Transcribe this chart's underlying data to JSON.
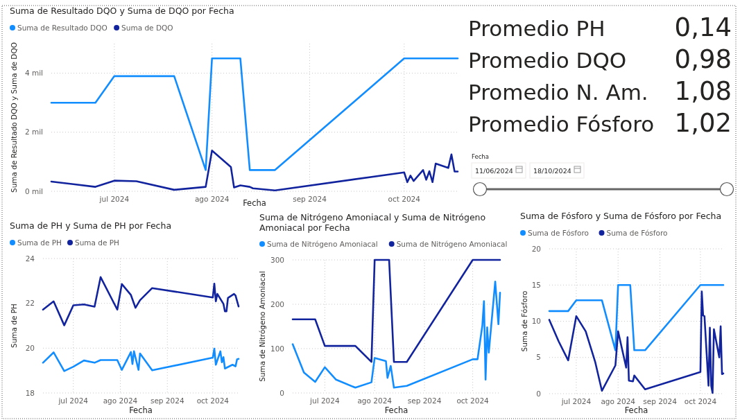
{
  "chart_data": [
    {
      "type": "line",
      "title": "Suma de Resultado DQO y Suma de DQO por Fecha",
      "xlabel": "Fecha",
      "ylabel": "Suma de Resultado DQO y Suma de DQO",
      "legend": "top left",
      "grid": true,
      "xlim": [
        "2024-06-11",
        "2024-10-18"
      ],
      "xticks": [
        {
          "value": "2024-07-01",
          "label": "jul 2024"
        },
        {
          "value": "2024-08-01",
          "label": "ago 2024"
        },
        {
          "value": "2024-09-01",
          "label": "sep 2024"
        },
        {
          "value": "2024-10-01",
          "label": "oct 2024"
        }
      ],
      "ylim": [
        0,
        5
      ],
      "yticks": [
        {
          "value": 0,
          "label": "0 mil"
        },
        {
          "value": 2,
          "label": "2 mil"
        },
        {
          "value": 4,
          "label": "4 mil"
        }
      ],
      "series": [
        {
          "name": "Suma de Resultado DQO",
          "color": "#118dff",
          "x": [
            "2024-06-11",
            "2024-06-25",
            "2024-07-01",
            "2024-07-20",
            "2024-07-30",
            "2024-08-01",
            "2024-08-10",
            "2024-08-13",
            "2024-08-21",
            "2024-10-01",
            "2024-10-18"
          ],
          "values": [
            3,
            3,
            3.9,
            3.9,
            0.72,
            4.5,
            4.5,
            0.72,
            0.72,
            4.5,
            4.5
          ]
        },
        {
          "name": "Suma de DQO",
          "color": "#12239e",
          "x": [
            "2024-06-11",
            "2024-06-18",
            "2024-06-25",
            "2024-07-01",
            "2024-07-08",
            "2024-07-20",
            "2024-07-30",
            "2024-08-01",
            "2024-08-07",
            "2024-08-08",
            "2024-08-10",
            "2024-08-13",
            "2024-08-14",
            "2024-08-21",
            "2024-10-01",
            "2024-10-02",
            "2024-10-03",
            "2024-10-04",
            "2024-10-07",
            "2024-10-08",
            "2024-10-09",
            "2024-10-10",
            "2024-10-11",
            "2024-10-15",
            "2024-10-16",
            "2024-10-17",
            "2024-10-18"
          ],
          "values": [
            0.33,
            0.24,
            0.15,
            0.36,
            0.34,
            0.05,
            0.15,
            1.38,
            0.82,
            0.13,
            0.2,
            0.15,
            0.1,
            0.03,
            0.64,
            0.31,
            0.53,
            0.35,
            0.72,
            0.39,
            0.68,
            0.31,
            0.94,
            0.79,
            1.25,
            0.67,
            0.67
          ]
        }
      ]
    },
    {
      "type": "line",
      "title": "Suma de PH y Suma de PH por Fecha",
      "xlabel": "Fecha",
      "ylabel": "Suma de PH",
      "legend": "top left",
      "grid": true,
      "xlim": [
        "2024-06-11",
        "2024-10-18"
      ],
      "xticks": [
        {
          "value": "2024-07-01",
          "label": "jul 2024"
        },
        {
          "value": "2024-08-01",
          "label": "ago 2024"
        },
        {
          "value": "2024-09-01",
          "label": "sep 2024"
        },
        {
          "value": "2024-10-01",
          "label": "oct 2024"
        }
      ],
      "ylim": [
        18,
        24
      ],
      "yticks": [
        18,
        20,
        22,
        24
      ],
      "series": [
        {
          "name": "Suma de PH",
          "color": "#118dff",
          "x": [
            "2024-06-11",
            "2024-06-18",
            "2024-06-25",
            "2024-07-01",
            "2024-07-08",
            "2024-07-15",
            "2024-07-19",
            "2024-07-30",
            "2024-08-02",
            "2024-08-08",
            "2024-08-09",
            "2024-08-10",
            "2024-08-13",
            "2024-08-14",
            "2024-08-22",
            "2024-10-01",
            "2024-10-02",
            "2024-10-03",
            "2024-10-06",
            "2024-10-07",
            "2024-10-08",
            "2024-10-09",
            "2024-10-14",
            "2024-10-16",
            "2024-10-17",
            "2024-10-18"
          ],
          "values": [
            19.35,
            19.81,
            18.98,
            19.17,
            19.45,
            19.35,
            19.47,
            19.47,
            19.03,
            19.83,
            19.29,
            19.86,
            19.03,
            19.76,
            19.01,
            19.58,
            19.98,
            19.26,
            19.86,
            19.37,
            19.6,
            19.09,
            19.26,
            19.19,
            19.5,
            19.52
          ]
        },
        {
          "name": "Suma de PH",
          "color": "#12239e",
          "x": [
            "2024-06-11",
            "2024-06-18",
            "2024-06-25",
            "2024-07-01",
            "2024-07-08",
            "2024-07-15",
            "2024-07-19",
            "2024-07-30",
            "2024-08-02",
            "2024-08-08",
            "2024-08-11",
            "2024-08-14",
            "2024-08-22",
            "2024-10-01",
            "2024-10-02",
            "2024-10-03",
            "2024-10-04",
            "2024-10-08",
            "2024-10-09",
            "2024-10-10",
            "2024-10-11",
            "2024-10-15",
            "2024-10-16",
            "2024-10-18"
          ],
          "values": [
            21.72,
            22.09,
            21.02,
            21.91,
            21.95,
            21.85,
            23.17,
            21.72,
            22.86,
            22.37,
            21.8,
            22.14,
            22.68,
            22.26,
            22.88,
            22.09,
            22.42,
            21.98,
            21.64,
            21.64,
            22.24,
            22.42,
            22.35,
            21.86
          ]
        }
      ]
    },
    {
      "type": "line",
      "title": "Suma de Nitrógeno Amoniacal y Suma de Nitrógeno Amoniacal por Fecha",
      "xlabel": "Fecha",
      "ylabel": "Suma de Nitrógeno Amoniacal",
      "legend": "top left",
      "grid": true,
      "xlim": [
        "2024-06-11",
        "2024-10-18"
      ],
      "xticks": [
        {
          "value": "2024-07-01",
          "label": "jul 2024"
        },
        {
          "value": "2024-08-01",
          "label": "ago 2024"
        },
        {
          "value": "2024-09-01",
          "label": "sep 2024"
        },
        {
          "value": "2024-10-01",
          "label": "oct 2024"
        }
      ],
      "ylim": [
        0,
        300
      ],
      "yticks": [
        0,
        100,
        200,
        300
      ],
      "series": [
        {
          "name": "Suma de Nitrógeno Amoniacal",
          "color": "#118dff",
          "x": [
            "2024-06-11",
            "2024-06-18",
            "2024-06-25",
            "2024-07-01",
            "2024-07-08",
            "2024-07-20",
            "2024-07-30",
            "2024-08-01",
            "2024-08-08",
            "2024-08-09",
            "2024-08-11",
            "2024-08-13",
            "2024-08-21",
            "2024-10-01",
            "2024-10-04",
            "2024-10-07",
            "2024-10-08",
            "2024-10-09",
            "2024-10-10",
            "2024-10-11",
            "2024-10-15",
            "2024-10-17",
            "2024-10-18"
          ],
          "values": [
            110,
            46,
            25,
            58,
            30,
            12,
            24,
            79,
            72,
            34,
            61,
            12,
            16,
            76,
            76,
            152,
            207,
            30,
            148,
            91,
            251,
            155,
            226
          ]
        },
        {
          "name": "Suma de Nitrógeno Amoniacal",
          "color": "#12239e",
          "x": [
            "2024-06-11",
            "2024-06-25",
            "2024-07-01",
            "2024-07-20",
            "2024-07-30",
            "2024-08-01",
            "2024-08-10",
            "2024-08-13",
            "2024-08-21",
            "2024-10-01",
            "2024-10-18"
          ],
          "values": [
            166,
            166,
            106,
            106,
            70,
            300,
            300,
            70,
            70,
            300,
            300
          ]
        }
      ]
    },
    {
      "type": "line",
      "title": "Suma de Fósforo y Suma de Fósforo por Fecha",
      "xlabel": "Fecha",
      "ylabel": "Suma de Fósforo",
      "legend": "top left",
      "grid": true,
      "xlim": [
        "2024-06-11",
        "2024-10-18"
      ],
      "xticks": [
        {
          "value": "2024-07-01",
          "label": "jul 2024"
        },
        {
          "value": "2024-08-01",
          "label": "ago 2024"
        },
        {
          "value": "2024-09-01",
          "label": "sep 2024"
        },
        {
          "value": "2024-10-01",
          "label": "oct 2024"
        }
      ],
      "ylim": [
        0,
        20
      ],
      "yticks": [
        0,
        5,
        10,
        15,
        20
      ],
      "series": [
        {
          "name": "Suma de Fósforo",
          "color": "#118dff",
          "x": [
            "2024-06-11",
            "2024-06-25",
            "2024-07-01",
            "2024-07-20",
            "2024-07-30",
            "2024-08-01",
            "2024-08-10",
            "2024-08-13",
            "2024-08-21",
            "2024-10-01",
            "2024-10-18"
          ],
          "values": [
            11.4,
            11.4,
            12.9,
            12.9,
            6,
            15,
            15,
            6,
            6,
            15,
            15
          ]
        },
        {
          "name": "Suma de Fósforo",
          "color": "#12239e",
          "x": [
            "2024-06-11",
            "2024-06-18",
            "2024-06-25",
            "2024-07-01",
            "2024-07-08",
            "2024-07-15",
            "2024-07-20",
            "2024-07-30",
            "2024-08-01",
            "2024-08-07",
            "2024-08-08",
            "2024-08-09",
            "2024-08-12",
            "2024-08-13",
            "2024-08-21",
            "2024-10-01",
            "2024-10-02",
            "2024-10-03",
            "2024-10-04",
            "2024-10-07",
            "2024-10-08",
            "2024-10-09",
            "2024-10-10",
            "2024-10-11",
            "2024-10-15",
            "2024-10-16",
            "2024-10-17",
            "2024-10-18"
          ],
          "values": [
            10.2,
            7.2,
            4.6,
            10.7,
            8.6,
            4.4,
            0.4,
            3.9,
            8.6,
            3.6,
            7.8,
            1.8,
            1.7,
            2.5,
            0.6,
            3.0,
            14.1,
            10.8,
            10.7,
            1.1,
            9.1,
            1.1,
            0.1,
            8.9,
            5.0,
            9.3,
            2.7,
            2.8
          ]
        }
      ]
    },
    {
      "type": "other",
      "categories": [
        "Promedio PH",
        "Promedio DQO",
        "Promedio N. Am.",
        "Promedio Fósforo"
      ],
      "value_labels": [
        "0,14",
        "0,98",
        "1,08",
        "1,02"
      ]
    },
    {
      "type": "other",
      "title": "Fecha",
      "annotations": [
        "11/06/2024",
        "18/10/2024"
      ]
    }
  ]
}
